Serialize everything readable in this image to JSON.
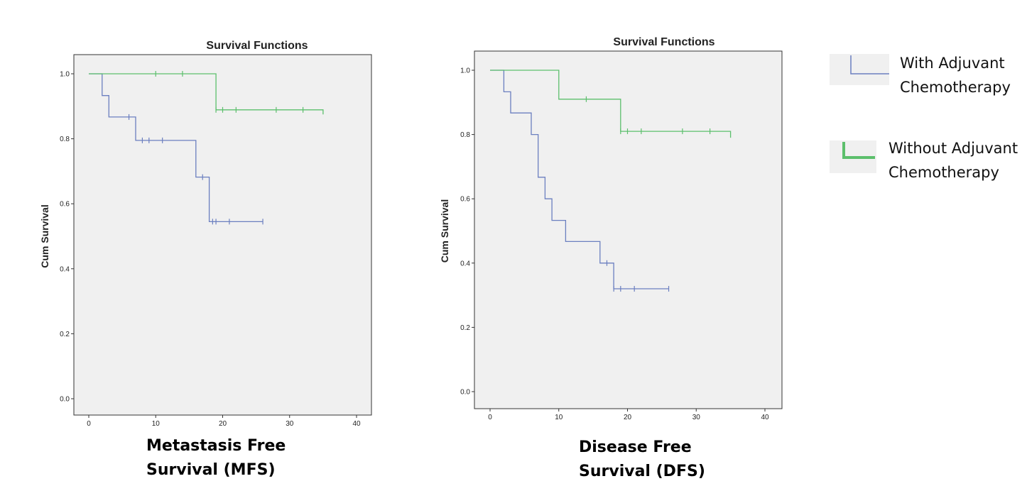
{
  "chart_data": [
    {
      "type": "line",
      "step": true,
      "title": "Survival Functions",
      "ylabel": "Cum Survival",
      "xlabel": "",
      "caption": [
        "Metastasis Free",
        "Survival (MFS)"
      ],
      "xlim": [
        0,
        40
      ],
      "ylim": [
        0,
        1.0
      ],
      "xticks": [
        "0",
        "10",
        "20",
        "30",
        "40"
      ],
      "yticks": [
        "0.0",
        "0.2",
        "0.4",
        "0.6",
        "0.8",
        "1.0"
      ],
      "grid": false,
      "series": [
        {
          "name": "With Adjuvant Chemotherapy",
          "color": "#6b7fc0",
          "steps": [
            [
              0,
              1.0
            ],
            [
              2,
              0.933
            ],
            [
              3,
              0.867
            ],
            [
              7,
              0.795
            ],
            [
              16,
              0.682
            ],
            [
              18,
              0.545
            ],
            [
              26,
              0.545
            ]
          ],
          "censored": [
            [
              6,
              0.867
            ],
            [
              8,
              0.795
            ],
            [
              9,
              0.795
            ],
            [
              11,
              0.795
            ],
            [
              17,
              0.682
            ],
            [
              18.5,
              0.545
            ],
            [
              19,
              0.545
            ],
            [
              21,
              0.545
            ],
            [
              26,
              0.545
            ]
          ]
        },
        {
          "name": "Without Adjuvant Chemotherapy",
          "color": "#5cbf6c",
          "steps": [
            [
              0,
              1.0
            ],
            [
              19,
              0.889
            ],
            [
              35,
              0.889
            ],
            [
              35,
              0.875
            ]
          ],
          "censored": [
            [
              10,
              1.0
            ],
            [
              14,
              1.0
            ],
            [
              19,
              0.889
            ],
            [
              20,
              0.889
            ],
            [
              22,
              0.889
            ],
            [
              28,
              0.889
            ],
            [
              32,
              0.889
            ]
          ]
        }
      ]
    },
    {
      "type": "line",
      "step": true,
      "title": "Survival Functions",
      "ylabel": "Cum Survival",
      "xlabel": "",
      "caption": [
        "Disease Free",
        "Survival (DFS)"
      ],
      "xlim": [
        0,
        40
      ],
      "ylim": [
        0,
        1.0
      ],
      "xticks": [
        "0",
        "10",
        "20",
        "30",
        "40"
      ],
      "yticks": [
        "0.0",
        "0.2",
        "0.4",
        "0.6",
        "0.8",
        "1.0"
      ],
      "grid": false,
      "series": [
        {
          "name": "With Adjuvant Chemotherapy",
          "color": "#6b7fc0",
          "steps": [
            [
              0,
              1.0
            ],
            [
              2,
              0.933
            ],
            [
              3,
              0.867
            ],
            [
              6,
              0.8
            ],
            [
              7,
              0.667
            ],
            [
              8,
              0.6
            ],
            [
              9,
              0.533
            ],
            [
              11,
              0.467
            ],
            [
              16,
              0.4
            ],
            [
              18,
              0.32
            ],
            [
              26,
              0.32
            ]
          ],
          "censored": [
            [
              17,
              0.4
            ],
            [
              18,
              0.32
            ],
            [
              19,
              0.32
            ],
            [
              21,
              0.32
            ],
            [
              26,
              0.32
            ]
          ]
        },
        {
          "name": "Without Adjuvant Chemotherapy",
          "color": "#5cbf6c",
          "steps": [
            [
              0,
              1.0
            ],
            [
              10,
              0.91
            ],
            [
              19,
              0.81
            ],
            [
              35,
              0.81
            ],
            [
              35,
              0.79
            ]
          ],
          "censored": [
            [
              14,
              0.91
            ],
            [
              19,
              0.81
            ],
            [
              20,
              0.81
            ],
            [
              22,
              0.81
            ],
            [
              28,
              0.81
            ],
            [
              32,
              0.81
            ]
          ]
        }
      ]
    }
  ],
  "legend": {
    "placement": "right",
    "items": [
      {
        "lines": [
          "With Adjuvant",
          "Chemotherapy"
        ],
        "color": "#6b7fc0"
      },
      {
        "lines": [
          "Without Adjuvant",
          "Chemotherapy"
        ],
        "color": "#5cbf6c"
      }
    ]
  }
}
